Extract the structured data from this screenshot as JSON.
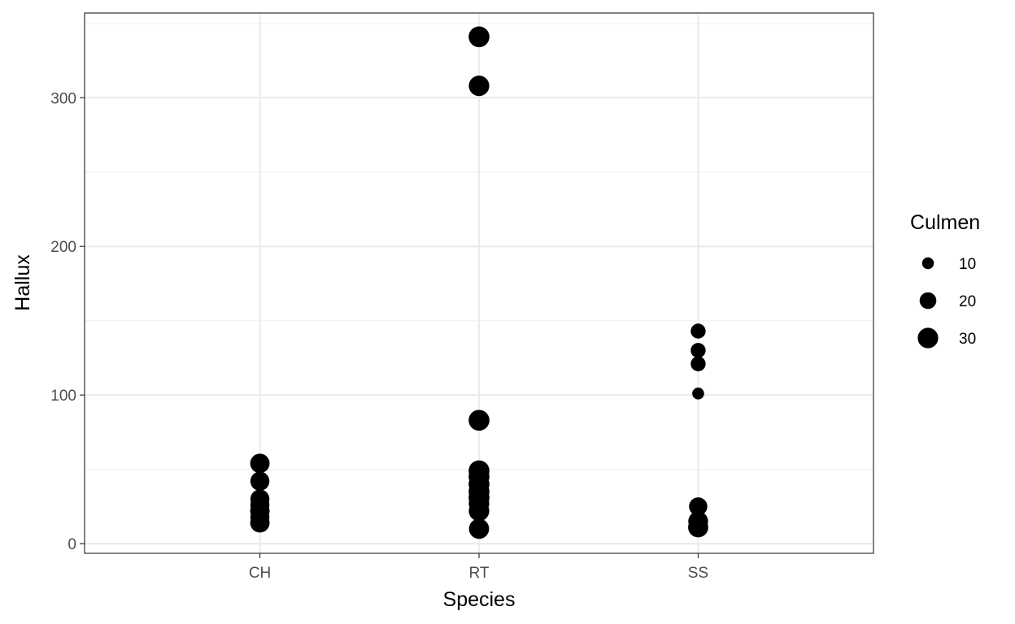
{
  "chart_data": {
    "type": "scatter",
    "title": "",
    "xlabel": "Species",
    "ylabel": "Hallux",
    "categories": [
      "CH",
      "RT",
      "SS"
    ],
    "ylim": [
      -6.5,
      357
    ],
    "y_ticks": [
      0,
      100,
      200,
      300
    ],
    "y_tick_labels": [
      "0",
      "100",
      "200",
      "300"
    ],
    "grid": true,
    "size_legend": {
      "title": "Culmen",
      "position": "right",
      "entries": [
        {
          "label": "10",
          "value": 10
        },
        {
          "label": "20",
          "value": 20
        },
        {
          "label": "30",
          "value": 30
        }
      ]
    },
    "points": [
      {
        "x": "CH",
        "y": 54,
        "size": 27
      },
      {
        "x": "CH",
        "y": 42,
        "size": 26
      },
      {
        "x": "CH",
        "y": 30,
        "size": 26
      },
      {
        "x": "CH",
        "y": 26,
        "size": 26
      },
      {
        "x": "CH",
        "y": 22,
        "size": 27
      },
      {
        "x": "CH",
        "y": 18,
        "size": 26
      },
      {
        "x": "CH",
        "y": 14,
        "size": 27
      },
      {
        "x": "RT",
        "y": 341,
        "size": 31
      },
      {
        "x": "RT",
        "y": 308,
        "size": 30
      },
      {
        "x": "RT",
        "y": 83,
        "size": 31
      },
      {
        "x": "RT",
        "y": 49,
        "size": 31
      },
      {
        "x": "RT",
        "y": 45,
        "size": 31
      },
      {
        "x": "RT",
        "y": 40,
        "size": 31
      },
      {
        "x": "RT",
        "y": 35,
        "size": 31
      },
      {
        "x": "RT",
        "y": 31,
        "size": 31
      },
      {
        "x": "RT",
        "y": 27,
        "size": 30
      },
      {
        "x": "RT",
        "y": 22,
        "size": 30
      },
      {
        "x": "RT",
        "y": 10,
        "size": 29
      },
      {
        "x": "SS",
        "y": 143,
        "size": 16
      },
      {
        "x": "SS",
        "y": 130,
        "size": 16
      },
      {
        "x": "SS",
        "y": 121,
        "size": 16
      },
      {
        "x": "SS",
        "y": 101,
        "size": 10
      },
      {
        "x": "SS",
        "y": 25,
        "size": 24
      },
      {
        "x": "SS",
        "y": 15,
        "size": 28
      },
      {
        "x": "SS",
        "y": 11,
        "size": 29
      }
    ],
    "point_color": "#000000"
  }
}
